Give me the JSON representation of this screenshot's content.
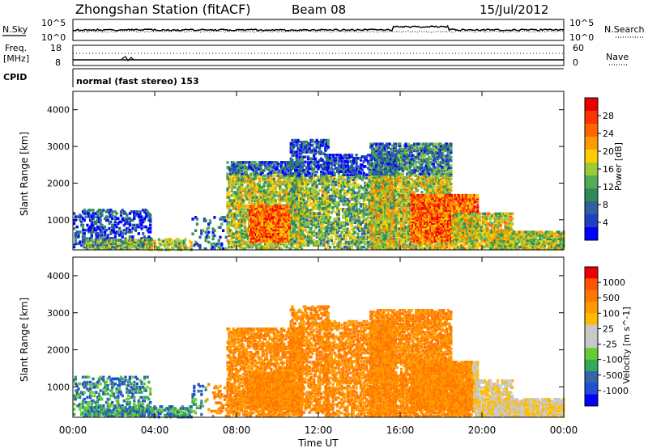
{
  "header": {
    "station": "Zhongshan Station (fitACF)",
    "beam": "Beam 08",
    "date": "15/Jul/2012"
  },
  "top_panels": {
    "nsky_label": "N.Sky",
    "nsearch_label": "N.Search",
    "nsky_ticks": [
      "10^5",
      "10^0"
    ],
    "nsearch_ticks": [
      "10^5",
      "10^0"
    ],
    "freq_label_1": "Freq.",
    "freq_label_2": "[MHz]",
    "freq_ticks": [
      "18",
      "8"
    ],
    "nave_label": "Nave",
    "nave_ticks": [
      "60",
      "0"
    ],
    "cpid_label": "CPID",
    "cpid_text": "normal (fast stereo) 153"
  },
  "x_axis": {
    "title": "Time UT",
    "ticks": [
      "00:00",
      "04:00",
      "08:00",
      "12:00",
      "16:00",
      "20:00",
      "00:00"
    ]
  },
  "chart_data": [
    {
      "type": "heatmap",
      "panel": "power",
      "ylabel": "Slant Range [km]",
      "ylim": [
        180,
        4500
      ],
      "yticks": [
        "1000",
        "2000",
        "3000",
        "4000"
      ],
      "colorbar_label": "Power [dB]",
      "colorbar_ticks": [
        "28",
        "24",
        "20",
        "16",
        "12",
        "8",
        "4"
      ],
      "colors": [
        "#0000ff",
        "#2040c0",
        "#3060a0",
        "#2e8b57",
        "#55aa55",
        "#99cc33",
        "#ffcc00",
        "#ff9900",
        "#ff6600",
        "#ff3300",
        "#ee0000"
      ]
    },
    {
      "type": "heatmap",
      "panel": "velocity",
      "ylabel": "Slant Range [km]",
      "ylim": [
        180,
        4500
      ],
      "yticks": [
        "1000",
        "2000",
        "3000",
        "4000"
      ],
      "colorbar_label": "Velocity [m s^-1]",
      "colorbar_ticks": [
        "1000",
        "500",
        "100",
        "25",
        "-25",
        "-100",
        "-500",
        "-1000"
      ],
      "colors": [
        "#0000ff",
        "#1f4fd0",
        "#3366aa",
        "#33aa55",
        "#66cc33",
        "#c8c8c8",
        "#c8c8c8",
        "#ffbb00",
        "#ff9900",
        "#ff7700",
        "#ff5500",
        "#ee0000"
      ]
    }
  ]
}
